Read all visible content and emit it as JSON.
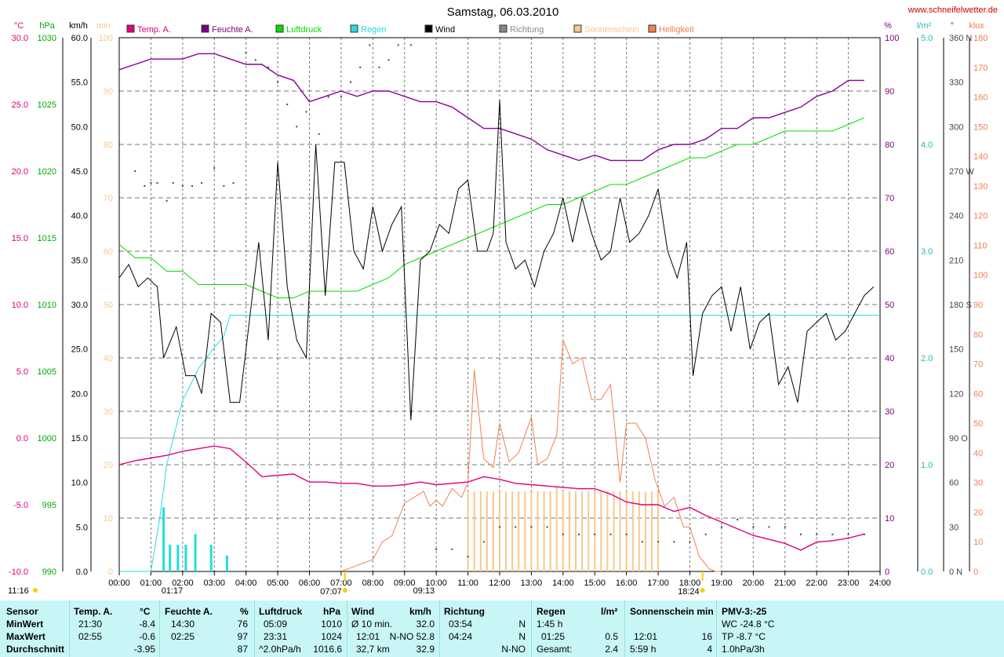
{
  "header": {
    "title": "Samstag, 06.03.2010",
    "url": "www.schneifelwetter.de"
  },
  "legend": [
    {
      "label": "Temp. A.",
      "color": "#e0007a"
    },
    {
      "label": "Feuchte A.",
      "color": "#7a007a"
    },
    {
      "label": "Luftdruck",
      "color": "#00dd00"
    },
    {
      "label": "Regen",
      "color": "#22dddd"
    },
    {
      "label": "Wind",
      "color": "#000000"
    },
    {
      "label": "Richtung",
      "color": "#888888"
    },
    {
      "label": "Sonnenschein",
      "color": "#f8c88a"
    },
    {
      "label": "Helligkeit",
      "color": "#f08050"
    }
  ],
  "axes_units": {
    "temp": "°C",
    "pressure": "hPa",
    "wind": "km/h",
    "sunshine": "min",
    "humidity": "%",
    "rain": "l/m²",
    "direction": "°",
    "brightness": "klux"
  },
  "axes_ticks": {
    "temp": [
      "30.0",
      "25.0",
      "20.0",
      "15.0",
      "10.0",
      "5.0",
      "0.0",
      "-5.0",
      "-10.0"
    ],
    "pressure": [
      "1030",
      "1025",
      "1020",
      "1015",
      "1010",
      "1005",
      "1000",
      "995",
      "990"
    ],
    "wind": [
      "60.0",
      "55.0",
      "50.0",
      "45.0",
      "40.0",
      "35.0",
      "30.0",
      "25.0",
      "20.0",
      "15.0",
      "10.0",
      "5.0",
      "0.0"
    ],
    "sunshine": [
      "100",
      "90",
      "80",
      "70",
      "60",
      "50",
      "40",
      "30",
      "20",
      "10",
      "0"
    ],
    "humidity": [
      "100",
      "90",
      "80",
      "70",
      "60",
      "50",
      "40",
      "30",
      "20",
      "10",
      "0"
    ],
    "rain": [
      "5.0",
      "4.0",
      "3.0",
      "2.0",
      "1.0",
      "0.0"
    ],
    "direction": [
      "360 N",
      "330",
      "300",
      "270 W",
      "240",
      "210",
      "180 S",
      "150",
      "120",
      "90  O",
      "60",
      "30",
      "0   N"
    ],
    "brightness": [
      "180",
      "170",
      "160",
      "150",
      "140",
      "130",
      "120",
      "110",
      "100",
      "90",
      "80",
      "70",
      "60",
      "50",
      "40",
      "30",
      "20",
      "10",
      "0"
    ],
    "x": [
      "00:00",
      "01:00",
      "02:00",
      "03:00",
      "04:00",
      "05:00",
      "06:00",
      "07:00",
      "08:00",
      "09:00",
      "10:00",
      "11:00",
      "12:00",
      "13:00",
      "14:00",
      "15:00",
      "16:00",
      "17:00",
      "18:00",
      "19:00",
      "20:00",
      "21:00",
      "22:00",
      "23:00",
      "24:00"
    ]
  },
  "time_annotations": {
    "moonset": "11:16",
    "rain_start": "01:17",
    "sunrise": "07:07",
    "wind_max_dir": "09:13",
    "sunset": "18:24"
  },
  "chart_data": {
    "type": "line",
    "title": "Samstag, 06.03.2010",
    "xlabel": "",
    "x_range": [
      "00:00",
      "24:00"
    ],
    "ylim": {
      "temp": [
        -10,
        30
      ],
      "pressure": [
        990,
        1030
      ],
      "wind": [
        0,
        60
      ],
      "sunshine": [
        0,
        100
      ],
      "humidity": [
        0,
        100
      ],
      "rain": [
        0,
        5
      ],
      "direction": [
        0,
        360
      ],
      "brightness": [
        0,
        180
      ]
    },
    "grid": true,
    "legend_position": "top",
    "series": [
      {
        "name": "Temp. A.",
        "unit": "°C",
        "x": [
          0,
          0.5,
          1,
          1.5,
          2,
          2.5,
          3,
          3.5,
          4,
          4.5,
          5,
          5.5,
          6,
          6.5,
          7,
          7.5,
          8,
          8.5,
          9,
          9.5,
          10,
          10.5,
          11,
          11.5,
          12,
          12.5,
          13,
          13.5,
          14,
          14.5,
          15,
          15.5,
          16,
          16.5,
          17,
          17.5,
          18,
          18.5,
          19,
          19.5,
          20,
          20.5,
          21,
          21.5,
          22,
          22.5,
          23,
          23.5
        ],
        "y": [
          -2,
          -1.7,
          -1.5,
          -1.3,
          -1.0,
          -0.8,
          -0.6,
          -0.8,
          -1.8,
          -2.9,
          -2.8,
          -2.7,
          -3.3,
          -3.3,
          -3.4,
          -3.4,
          -3.6,
          -3.6,
          -3.5,
          -3.3,
          -3.5,
          -3.4,
          -3.3,
          -2.9,
          -3.1,
          -3.4,
          -3.5,
          -3.6,
          -3.7,
          -3.8,
          -3.8,
          -4.2,
          -4.8,
          -5.0,
          -5.0,
          -5.5,
          -5.2,
          -5.8,
          -6.3,
          -6.8,
          -7.3,
          -7.6,
          -7.9,
          -8.4,
          -7.8,
          -7.7,
          -7.5,
          -7.2
        ]
      },
      {
        "name": "Feuchte A.",
        "unit": "%",
        "x": [
          0,
          0.5,
          1,
          1.5,
          2,
          2.5,
          3,
          3.5,
          4,
          4.5,
          5,
          5.5,
          6,
          6.5,
          7,
          7.5,
          8,
          8.5,
          9,
          9.5,
          10,
          10.5,
          11,
          11.5,
          12,
          12.5,
          13,
          13.5,
          14,
          14.5,
          15,
          15.5,
          16,
          16.5,
          17,
          17.5,
          18,
          18.5,
          19,
          19.5,
          20,
          20.5,
          21,
          21.5,
          22,
          22.5,
          23,
          23.5
        ],
        "y": [
          94,
          95,
          96,
          96,
          96,
          97,
          97,
          96,
          95,
          95,
          93,
          92,
          88,
          89,
          90,
          89,
          90,
          90,
          89,
          88,
          88,
          87,
          85,
          83,
          83,
          82,
          81,
          79,
          78,
          77,
          78,
          77,
          77,
          77,
          79,
          80,
          80,
          81,
          83,
          83,
          85,
          85,
          86,
          87,
          89,
          90,
          92,
          92
        ]
      },
      {
        "name": "Luftdruck",
        "unit": "hPa",
        "x": [
          0,
          0.5,
          1,
          1.5,
          2,
          2.5,
          3,
          3.5,
          4,
          4.5,
          5,
          5.5,
          6,
          6.5,
          7,
          7.5,
          8,
          8.5,
          9,
          9.5,
          10,
          10.5,
          11,
          11.5,
          12,
          12.5,
          13,
          13.5,
          14,
          14.5,
          15,
          15.5,
          16,
          16.5,
          17,
          17.5,
          18,
          18.5,
          19,
          19.5,
          20,
          20.5,
          21,
          21.5,
          22,
          22.5,
          23,
          23.5
        ],
        "y": [
          1014.5,
          1013.5,
          1013.5,
          1012.5,
          1012.5,
          1011.5,
          1011.5,
          1011.5,
          1011.5,
          1011,
          1010.5,
          1010.5,
          1011,
          1011,
          1011,
          1011,
          1011.5,
          1012,
          1013,
          1013.5,
          1014,
          1014.5,
          1015,
          1015.5,
          1016,
          1016.5,
          1017,
          1017.5,
          1017.5,
          1018,
          1018.5,
          1019,
          1019,
          1019.5,
          1020,
          1020.5,
          1021,
          1021,
          1021.5,
          1022,
          1022,
          1022.5,
          1023,
          1023,
          1023,
          1023,
          1023.5,
          1024
        ]
      },
      {
        "name": "Regen",
        "unit": "l/m²",
        "x": [
          0,
          1,
          1.28,
          1.5,
          2,
          2.5,
          3,
          3.3,
          3.5,
          24
        ],
        "y": [
          0,
          0,
          0.5,
          1.0,
          1.6,
          1.9,
          2.1,
          2.2,
          2.4,
          2.4
        ]
      },
      {
        "name": "Wind",
        "unit": "km/h",
        "x": [
          0,
          0.3,
          0.6,
          0.9,
          1.2,
          1.4,
          1.8,
          2.1,
          2.4,
          2.6,
          2.9,
          3.2,
          3.5,
          3.8,
          4.1,
          4.4,
          4.7,
          5.0,
          5.3,
          5.6,
          5.9,
          6.2,
          6.5,
          6.8,
          7.1,
          7.4,
          7.7,
          8.0,
          8.3,
          8.6,
          8.9,
          9.2,
          9.5,
          9.8,
          10.1,
          10.4,
          10.7,
          11.0,
          11.3,
          11.6,
          11.8,
          12.0,
          12.2,
          12.5,
          12.8,
          13.1,
          13.4,
          13.7,
          14.0,
          14.3,
          14.6,
          14.9,
          15.2,
          15.5,
          15.8,
          16.1,
          16.4,
          16.7,
          17.0,
          17.3,
          17.6,
          17.9,
          18.1,
          18.4,
          18.7,
          19.0,
          19.3,
          19.6,
          19.9,
          20.2,
          20.5,
          20.8,
          21.1,
          21.4,
          21.7,
          22.0,
          22.3,
          22.6,
          22.9,
          23.2,
          23.5,
          23.8
        ],
        "y": [
          33,
          34.5,
          32,
          33,
          32,
          24,
          27.5,
          22,
          22,
          20,
          29,
          28,
          19,
          19,
          28,
          37,
          26,
          46,
          32,
          26,
          24,
          48,
          31,
          46,
          46,
          36,
          34,
          41,
          36,
          39,
          41,
          17,
          35,
          36,
          39,
          38,
          43,
          44,
          36,
          36,
          38,
          53,
          37,
          34,
          35,
          32,
          36,
          38,
          42,
          37,
          42,
          38,
          35,
          36,
          42,
          37,
          38,
          40,
          43,
          36,
          33,
          37,
          22,
          29,
          31,
          32,
          27,
          32,
          25,
          28,
          29,
          21,
          23,
          19,
          27,
          28,
          29,
          26,
          27,
          29,
          31,
          32
        ]
      },
      {
        "name": "Richtung",
        "unit": "°",
        "x": [
          0.5,
          0.8,
          1.0,
          1.2,
          1.5,
          1.7,
          2.0,
          2.3,
          2.6,
          3.0,
          3.3,
          3.6,
          4.0,
          4.3,
          4.7,
          5.0,
          5.3,
          5.6,
          5.9,
          6.3,
          6.6,
          7.0,
          7.3,
          7.6,
          7.9,
          8.2,
          8.5,
          8.8,
          9.2,
          10.0,
          10.5,
          11.0,
          11.5,
          12.0,
          12.5,
          13.0,
          13.5,
          14.0,
          14.5,
          15.0,
          15.5,
          16.0,
          16.5,
          17.0,
          17.5,
          18.0,
          18.5,
          19.0,
          19.5,
          20.0,
          20.5,
          21.0,
          21.5,
          22.0,
          22.5,
          23.0,
          23.5
        ],
        "y": [
          270,
          260,
          262,
          262,
          250,
          262,
          260,
          260,
          262,
          272,
          260,
          262,
          350,
          345,
          340,
          330,
          315,
          300,
          310,
          295,
          320,
          320,
          330,
          340,
          355,
          340,
          345,
          355,
          355,
          15,
          15,
          10,
          20,
          30,
          30,
          30,
          30,
          25,
          25,
          25,
          25,
          25,
          20,
          20,
          20,
          20,
          25,
          30,
          35,
          30,
          30,
          30,
          25,
          25,
          25,
          25,
          25
        ]
      },
      {
        "name": "Sonnenschein",
        "unit": "min",
        "x": [
          11.0,
          11.2,
          11.4,
          11.6,
          11.8,
          12.0,
          12.2,
          12.4,
          12.6,
          12.8,
          13.0,
          13.2,
          13.4,
          13.6,
          13.8,
          14.0,
          14.2,
          14.4,
          14.6,
          14.8,
          15.0,
          15.2,
          15.4,
          15.6,
          15.8,
          16.0,
          16.2,
          16.4,
          16.6,
          16.8,
          17.0
        ],
        "y": [
          15,
          15,
          15,
          15,
          15,
          15,
          15,
          15,
          15,
          15,
          15,
          15,
          15,
          15,
          16,
          15,
          15,
          15,
          15,
          15,
          15,
          15,
          15,
          15,
          15,
          15,
          15,
          15,
          15,
          15,
          15
        ]
      },
      {
        "name": "Helligkeit",
        "unit": "klux",
        "x": [
          7.0,
          7.5,
          8.0,
          8.3,
          8.6,
          9.0,
          9.3,
          9.6,
          9.8,
          10.0,
          10.2,
          10.5,
          10.8,
          11.0,
          11.2,
          11.5,
          11.8,
          12.0,
          12.3,
          12.6,
          13.0,
          13.2,
          13.5,
          13.8,
          14.0,
          14.3,
          14.6,
          14.9,
          15.2,
          15.5,
          15.8,
          16.0,
          16.3,
          16.6,
          16.9,
          17.2,
          17.5,
          17.8,
          18.0,
          18.3,
          18.6,
          18.8,
          19.0
        ],
        "y": [
          0,
          2,
          4,
          10,
          12,
          23,
          25,
          27,
          22,
          24,
          22,
          28,
          25,
          30,
          68,
          38,
          35,
          50,
          37,
          40,
          52,
          36,
          38,
          46,
          78,
          70,
          72,
          58,
          58,
          63,
          30,
          50,
          50,
          45,
          31,
          22,
          25,
          15,
          15,
          5,
          1,
          0,
          0
        ]
      }
    ]
  },
  "stats": {
    "header": {
      "sensor": "Sensor",
      "temp": "Temp. A.",
      "temp_unit": "°C",
      "hum": "Feuchte A.",
      "hum_unit": "%",
      "press": "Luftdruck",
      "press_unit": "hPa",
      "wind": "Wind",
      "wind_unit": "km/h",
      "dir": "Richtung",
      "rain": "Regen",
      "rain_unit": "l/m²",
      "sun": "Sonnenschein min",
      "pmv": "PMV-3:-25"
    },
    "min": {
      "label": "MinWert",
      "temp_time": "21:30",
      "temp_val": "-8.4",
      "hum_time": "14:30",
      "hum_val": "76",
      "press_time": "05:09",
      "press_val": "1010",
      "wind_label": "Ø 10 min.",
      "wind_val": "32.0",
      "dir_time": "03:54",
      "dir_val": "N",
      "rain_time": "1:45 h",
      "sun_time": "",
      "sun_val": "",
      "pmv": "WC -24.8 °C"
    },
    "max": {
      "label": "MaxWert",
      "temp_time": "02:55",
      "temp_val": "-0.6",
      "hum_time": "02:25",
      "hum_val": "97",
      "press_time": "23:31",
      "press_val": "1024",
      "wind_time": "12:01",
      "wind_val": "N-NO 52.8",
      "dir_time": "04:24",
      "dir_val": "N",
      "rain_time": "01:25",
      "rain_val": "0.5",
      "sun_time": "12:01",
      "sun_val": "16",
      "pmv": "TP -8.7 °C"
    },
    "avg": {
      "label": "Durchschnitt",
      "temp_val": "-3.95",
      "hum_val": "87",
      "press_trend": "^2.0hPa/h",
      "press_val": "1016.6",
      "wind_dist": "32,7 km",
      "wind_val": "32.9",
      "dir_val": "N-NO",
      "rain_label": "Gesamt:",
      "rain_val": "2.4",
      "sun_time": "5:59 h",
      "sun_val": "4",
      "pmv": "1.0hPa/3h"
    }
  }
}
